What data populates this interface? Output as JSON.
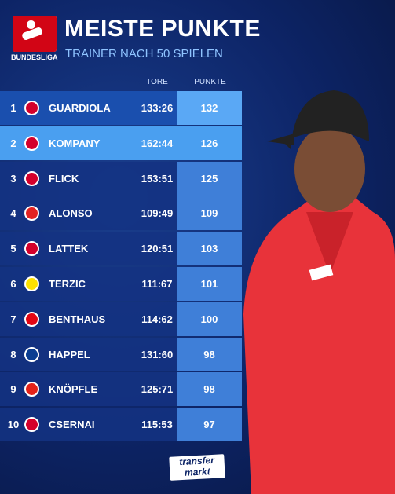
{
  "header": {
    "logo": "BUNDESLIGA",
    "title": "MEISTE PUNKTE",
    "subtitle": "TRAINER NACH 50 SPIELEN"
  },
  "table": {
    "columns": [
      "TORE",
      "PUNKTE"
    ],
    "rows": [
      [
        "1",
        "GUARDIOLA",
        "133:26",
        "132"
      ],
      [
        "2",
        "KOMPANY",
        "162:44",
        "126"
      ],
      [
        "3",
        "FLICK",
        "153:51",
        "125"
      ],
      [
        "4",
        "ALONSO",
        "109:49",
        "109"
      ],
      [
        "5",
        "LATTEK",
        "120:51",
        "103"
      ],
      [
        "6",
        "TERZIC",
        "111:67",
        "101"
      ],
      [
        "7",
        "BENTHAUS",
        "114:62",
        "100"
      ],
      [
        "8",
        "HAPPEL",
        "131:60",
        "98"
      ],
      [
        "9",
        "KNÖPFLE",
        "125:71",
        "98"
      ],
      [
        "10",
        "CSERNAI",
        "115:53",
        "97"
      ]
    ]
  },
  "footer": {
    "logo_top": "transfer",
    "logo_bottom": "markt"
  }
}
